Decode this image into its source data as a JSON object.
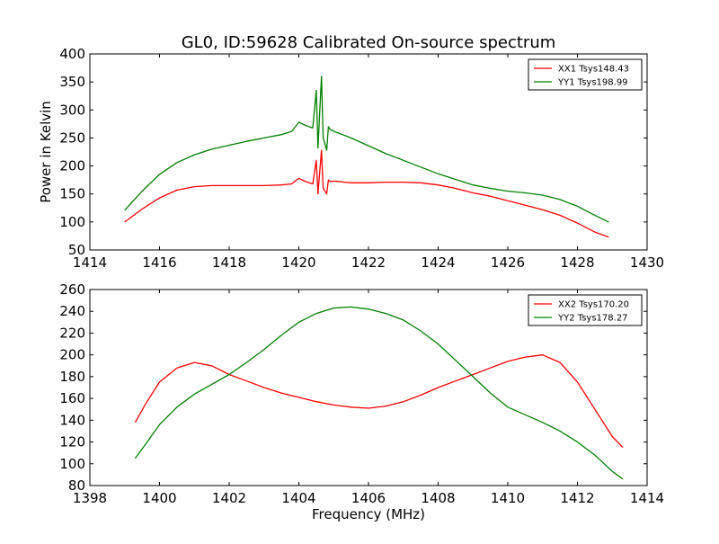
{
  "title": "GL0, ID:59628 Calibrated On-source spectrum",
  "chart_data": [
    {
      "type": "line",
      "ylabel": "Power in Kelvin",
      "xlabel": "",
      "xlim": [
        1414,
        1430
      ],
      "ylim": [
        50,
        400
      ],
      "xticks": [
        1414,
        1416,
        1418,
        1420,
        1422,
        1424,
        1426,
        1428,
        1430
      ],
      "yticks": [
        50,
        100,
        150,
        200,
        250,
        300,
        350,
        400
      ],
      "grid": false,
      "legend_position": "top-right",
      "series": [
        {
          "name": "XX1 Tsys148.43",
          "color": "#ff0000",
          "x": [
            1415.0,
            1415.5,
            1416.0,
            1416.5,
            1417.0,
            1417.5,
            1418.0,
            1418.5,
            1419.0,
            1419.5,
            1419.8,
            1420.0,
            1420.2,
            1420.4,
            1420.5,
            1420.55,
            1420.6,
            1420.65,
            1420.7,
            1420.8,
            1420.85,
            1420.9,
            1421.0,
            1421.5,
            1422.0,
            1422.5,
            1423.0,
            1423.5,
            1424.0,
            1424.5,
            1425.0,
            1425.5,
            1426.0,
            1426.5,
            1427.0,
            1427.5,
            1428.0,
            1428.5,
            1428.9
          ],
          "y": [
            100,
            123,
            143,
            157,
            163,
            165,
            165,
            165,
            165,
            166,
            168,
            178,
            172,
            168,
            210,
            150,
            188,
            228,
            160,
            150,
            175,
            172,
            173,
            170,
            170,
            171,
            171,
            170,
            166,
            160,
            152,
            146,
            138,
            130,
            122,
            112,
            98,
            82,
            73
          ]
        },
        {
          "name": "YY1 Tsys198.99",
          "color": "#008000",
          "x": [
            1415.0,
            1415.5,
            1416.0,
            1416.5,
            1417.0,
            1417.5,
            1418.0,
            1418.5,
            1419.0,
            1419.5,
            1419.8,
            1420.0,
            1420.2,
            1420.4,
            1420.5,
            1420.55,
            1420.6,
            1420.65,
            1420.7,
            1420.8,
            1420.85,
            1420.9,
            1421.0,
            1421.5,
            1422.0,
            1422.5,
            1423.0,
            1423.5,
            1424.0,
            1424.5,
            1425.0,
            1425.5,
            1426.0,
            1426.5,
            1427.0,
            1427.5,
            1428.0,
            1428.5,
            1428.9
          ],
          "y": [
            121,
            155,
            185,
            206,
            220,
            230,
            237,
            244,
            250,
            256,
            262,
            278,
            272,
            268,
            335,
            232,
            295,
            360,
            250,
            228,
            270,
            265,
            262,
            250,
            236,
            222,
            210,
            198,
            186,
            176,
            166,
            160,
            155,
            152,
            148,
            140,
            128,
            112,
            100
          ]
        }
      ]
    },
    {
      "type": "line",
      "ylabel": "",
      "xlabel": "Frequency (MHz)",
      "xlim": [
        1398,
        1414
      ],
      "ylim": [
        80,
        260
      ],
      "xticks": [
        1398,
        1400,
        1402,
        1404,
        1406,
        1408,
        1410,
        1412,
        1414
      ],
      "yticks": [
        80,
        100,
        120,
        140,
        160,
        180,
        200,
        220,
        240,
        260
      ],
      "grid": false,
      "legend_position": "top-right",
      "series": [
        {
          "name": "XX2 Tsys170.20",
          "color": "#ff0000",
          "x": [
            1399.3,
            1399.6,
            1400.0,
            1400.5,
            1401.0,
            1401.5,
            1402.0,
            1402.5,
            1403.0,
            1403.5,
            1404.0,
            1404.5,
            1405.0,
            1405.5,
            1406.0,
            1406.5,
            1407.0,
            1407.5,
            1408.0,
            1408.5,
            1409.0,
            1409.5,
            1410.0,
            1410.5,
            1411.0,
            1411.5,
            1412.0,
            1412.5,
            1413.0,
            1413.3
          ],
          "y": [
            138,
            155,
            175,
            188,
            193,
            190,
            182,
            176,
            170,
            165,
            161,
            157,
            154,
            152,
            151,
            153,
            157,
            163,
            170,
            176,
            182,
            188,
            194,
            198,
            200,
            193,
            175,
            150,
            125,
            115
          ]
        },
        {
          "name": "YY2 Tsys178.27",
          "color": "#008000",
          "x": [
            1399.3,
            1399.6,
            1400.0,
            1400.5,
            1401.0,
            1401.5,
            1402.0,
            1402.5,
            1403.0,
            1403.5,
            1404.0,
            1404.5,
            1405.0,
            1405.5,
            1406.0,
            1406.5,
            1407.0,
            1407.5,
            1408.0,
            1408.5,
            1409.0,
            1409.5,
            1410.0,
            1410.5,
            1411.0,
            1411.5,
            1412.0,
            1412.5,
            1413.0,
            1413.3
          ],
          "y": [
            105,
            118,
            136,
            152,
            164,
            173,
            182,
            193,
            205,
            218,
            230,
            238,
            243,
            244,
            242,
            238,
            232,
            222,
            210,
            195,
            180,
            165,
            152,
            145,
            138,
            130,
            120,
            108,
            93,
            86
          ]
        }
      ]
    }
  ]
}
